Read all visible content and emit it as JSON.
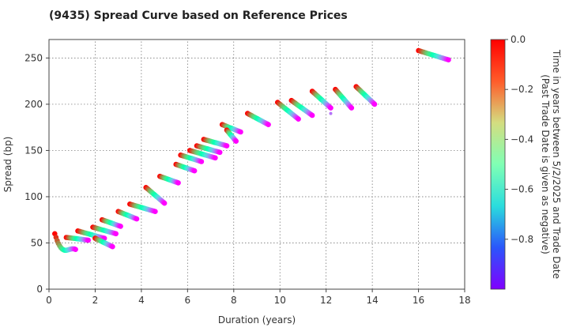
{
  "chart_data": {
    "type": "scatter",
    "title": "(9435)   Spread Curve based on Reference Prices",
    "xlabel": "Duration (years)",
    "ylabel": "Spread (bp)",
    "xlim": [
      0,
      18
    ],
    "ylim": [
      0,
      270
    ],
    "xticks": [
      0,
      2,
      4,
      6,
      8,
      10,
      12,
      14,
      16,
      18
    ],
    "yticks": [
      0,
      50,
      100,
      150,
      200,
      250
    ],
    "grid": true,
    "colorbar": {
      "label_line1": "Time in years between 5/2/2025 and Trade Date",
      "label_line2": "(Past Trade Date is given as negative)",
      "range": [
        -1.0,
        0.0
      ],
      "ticks": [
        0.0,
        -0.2,
        -0.4,
        -0.6,
        -0.8
      ],
      "tick_labels": [
        "0.0",
        "−0.2",
        "−0.4",
        "−0.6",
        "−0.8"
      ],
      "colormap": "rainbow"
    },
    "trails": [
      {
        "x0": 0.25,
        "x1": 1.15,
        "y0": 60,
        "y1": 43,
        "y_mid": 41
      },
      {
        "x0": 0.75,
        "x1": 1.7,
        "y0": 56,
        "y1": 53
      },
      {
        "x0": 1.25,
        "x1": 2.4,
        "y0": 63,
        "y1": 55
      },
      {
        "x0": 2.0,
        "x1": 2.75,
        "y0": 55,
        "y1": 46
      },
      {
        "x0": 1.9,
        "x1": 2.9,
        "y0": 67,
        "y1": 60
      },
      {
        "x0": 2.3,
        "x1": 3.1,
        "y0": 75,
        "y1": 68
      },
      {
        "x0": 3.0,
        "x1": 3.8,
        "y0": 84,
        "y1": 76
      },
      {
        "x0": 3.5,
        "x1": 4.6,
        "y0": 92,
        "y1": 84
      },
      {
        "x0": 4.2,
        "x1": 5.0,
        "y0": 110,
        "y1": 93
      },
      {
        "x0": 4.8,
        "x1": 5.6,
        "y0": 122,
        "y1": 115
      },
      {
        "x0": 5.5,
        "x1": 6.3,
        "y0": 135,
        "y1": 128
      },
      {
        "x0": 5.7,
        "x1": 6.6,
        "y0": 145,
        "y1": 138
      },
      {
        "x0": 6.1,
        "x1": 7.2,
        "y0": 150,
        "y1": 142
      },
      {
        "x0": 6.4,
        "x1": 7.4,
        "y0": 155,
        "y1": 148
      },
      {
        "x0": 6.7,
        "x1": 7.7,
        "y0": 162,
        "y1": 155
      },
      {
        "x0": 7.5,
        "x1": 8.3,
        "y0": 178,
        "y1": 170
      },
      {
        "x0": 7.7,
        "x1": 8.1,
        "y0": 172,
        "y1": 160
      },
      {
        "x0": 8.6,
        "x1": 9.5,
        "y0": 190,
        "y1": 178
      },
      {
        "x0": 9.9,
        "x1": 10.8,
        "y0": 202,
        "y1": 184
      },
      {
        "x0": 10.5,
        "x1": 11.4,
        "y0": 204,
        "y1": 188
      },
      {
        "x0": 11.4,
        "x1": 12.2,
        "y0": 214,
        "y1": 196
      },
      {
        "x0": 12.4,
        "x1": 13.1,
        "y0": 216,
        "y1": 196
      },
      {
        "x0": 13.3,
        "x1": 14.1,
        "y0": 219,
        "y1": 200
      },
      {
        "x0": 16.0,
        "x1": 17.3,
        "y0": 258,
        "y1": 248
      }
    ],
    "outliers": [
      {
        "x": 12.2,
        "y": 190,
        "t": -0.85
      }
    ]
  }
}
